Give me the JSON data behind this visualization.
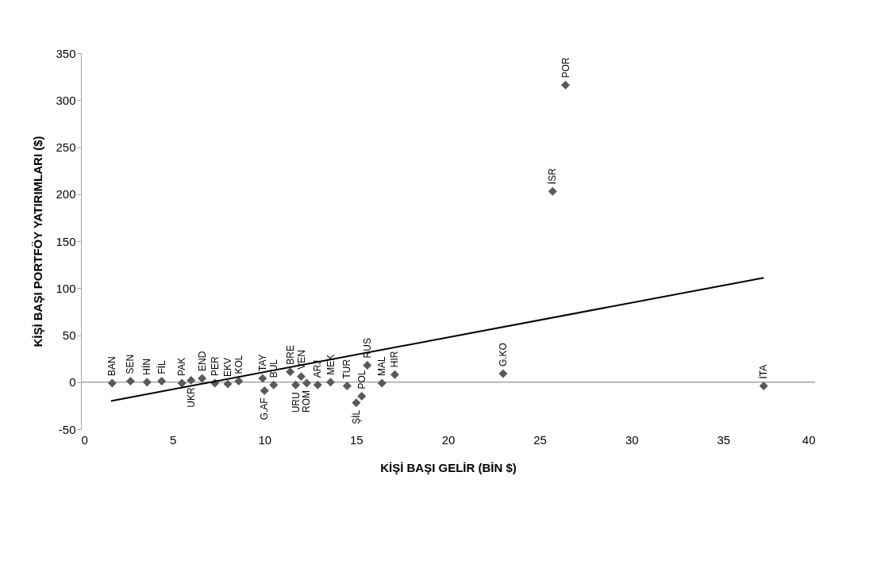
{
  "chart_data": {
    "type": "scatter",
    "xlabel": "KİŞİ BAŞI GELİR (BİN $)",
    "ylabel": "KİŞİ BAŞI PORTFÖY YATIRIMLARI ($)",
    "xlim": [
      0,
      40
    ],
    "xticks": [
      0,
      5,
      10,
      15,
      20,
      25,
      30,
      35,
      40
    ],
    "ylim": [
      -50,
      350
    ],
    "yticks": [
      -50,
      0,
      50,
      100,
      150,
      200,
      250,
      300,
      350
    ],
    "grid": false,
    "marker": "diamond",
    "ref_lines": [
      {
        "axis": "y",
        "value": 0,
        "color": "#a6a6a6"
      }
    ],
    "series": [
      {
        "color": "#595959",
        "x": [
          1.7,
          2.7,
          3.6,
          4.4,
          5.5,
          6.0,
          6.6,
          7.3,
          8.0,
          8.6,
          9.9,
          10.0,
          10.5,
          11.4,
          12.0,
          11.7,
          12.3,
          12.9,
          13.6,
          14.5,
          15.0,
          15.3,
          15.6,
          16.4,
          17.1,
          23.0,
          25.7,
          26.4,
          37.2
        ],
        "values": [
          -1,
          1,
          0,
          1,
          -1,
          2,
          4,
          -1,
          -2,
          1,
          4,
          -9,
          -3,
          11,
          6,
          -3,
          -1,
          -3,
          0,
          -4,
          -22,
          -15,
          18,
          -1,
          8,
          9,
          203,
          316,
          -4
        ],
        "value_labels": [
          "BAN",
          "SEN",
          "HİN",
          "FİL",
          "PAK",
          "UKR",
          "END",
          "PER",
          "EKV",
          "KOL",
          "TAY",
          "G.AF",
          "BUL",
          "BRE",
          "VEN",
          "URU",
          "ROM",
          "ARJ",
          "MEK",
          "TUR",
          "ŞİL",
          "POL",
          "RUS",
          "MAL",
          "HIR",
          "G.KO",
          "İSR",
          "POR",
          "İTA"
        ]
      },
      {
        "type": "line",
        "color": "#000000",
        "line_style": "solid",
        "marker": "none",
        "x": [
          1.64,
          37.2
        ],
        "values": [
          -20,
          111
        ]
      }
    ]
  }
}
